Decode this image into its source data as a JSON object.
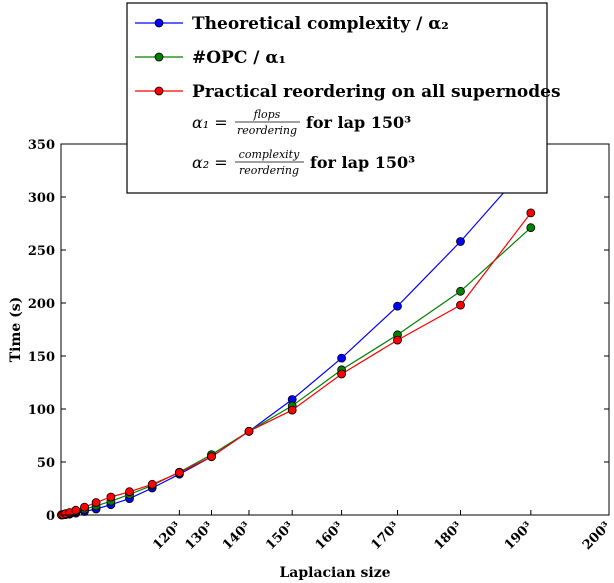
{
  "chart_data": {
    "type": "line",
    "xlabel": "Laplacian size",
    "ylabel": "Time (s)",
    "xlim": [
      0,
      8000000
    ],
    "ylim": [
      0,
      350
    ],
    "yticks": [
      0,
      50,
      100,
      150,
      200,
      250,
      300,
      350
    ],
    "ytick_labels": [
      "0",
      "50",
      "100",
      "150",
      "200",
      "250",
      "300",
      "350"
    ],
    "xticks": [
      1728000,
      2197000,
      2744000,
      3375000,
      4096000,
      4913000,
      5832000,
      6859000,
      8000000
    ],
    "xtick_labels": [
      "120³",
      "130³",
      "140³",
      "150³",
      "160³",
      "170³",
      "180³",
      "190³",
      "200³"
    ],
    "grid": false,
    "legend_position": "top-center",
    "x": [
      8000,
      27000,
      64000,
      125000,
      216000,
      343000,
      512000,
      729000,
      1000000,
      1331000,
      1728000,
      2197000,
      2744000,
      3375000,
      4096000,
      4913000,
      5832000,
      6859000,
      8000000
    ],
    "series": [
      {
        "name": "Theoretical complexity / α₂",
        "color": "#0000ff",
        "marker": "#0000ff",
        "values": [
          0.02,
          0.1,
          0.3,
          0.8,
          1.8,
          3.3,
          5.7,
          9.7,
          15.5,
          25.5,
          38.5,
          55.0,
          79.0,
          109.0,
          148.0,
          197.0,
          258.0,
          333.0,
          null
        ]
      },
      {
        "name": "#OPC / α₁",
        "color": "#008000",
        "marker": "#008000",
        "values": [
          0.1,
          0.3,
          0.8,
          1.6,
          3.0,
          5.5,
          8.6,
          13.0,
          19.3,
          28.0,
          40.5,
          57.0,
          79.0,
          103.0,
          137.0,
          170.0,
          211.0,
          271.0,
          null
        ]
      },
      {
        "name": "Practical reordering on all supernodes",
        "color": "#ff0000",
        "marker": "#ff0000",
        "values": [
          0.2,
          0.5,
          1.2,
          2.4,
          4.5,
          7.5,
          11.8,
          17.0,
          22.0,
          29.0,
          40.0,
          55.0,
          79.0,
          99.0,
          133.0,
          165.0,
          198.0,
          285.0,
          null
        ]
      }
    ],
    "legend_notes": [
      {
        "alpha": "α₁ =",
        "numerator": "flops",
        "denominator": "reordering",
        "suffix": "for lap 150³"
      },
      {
        "alpha": "α₂ =",
        "numerator": "complexity",
        "denominator": "reordering",
        "suffix": "for lap 150³"
      }
    ]
  }
}
